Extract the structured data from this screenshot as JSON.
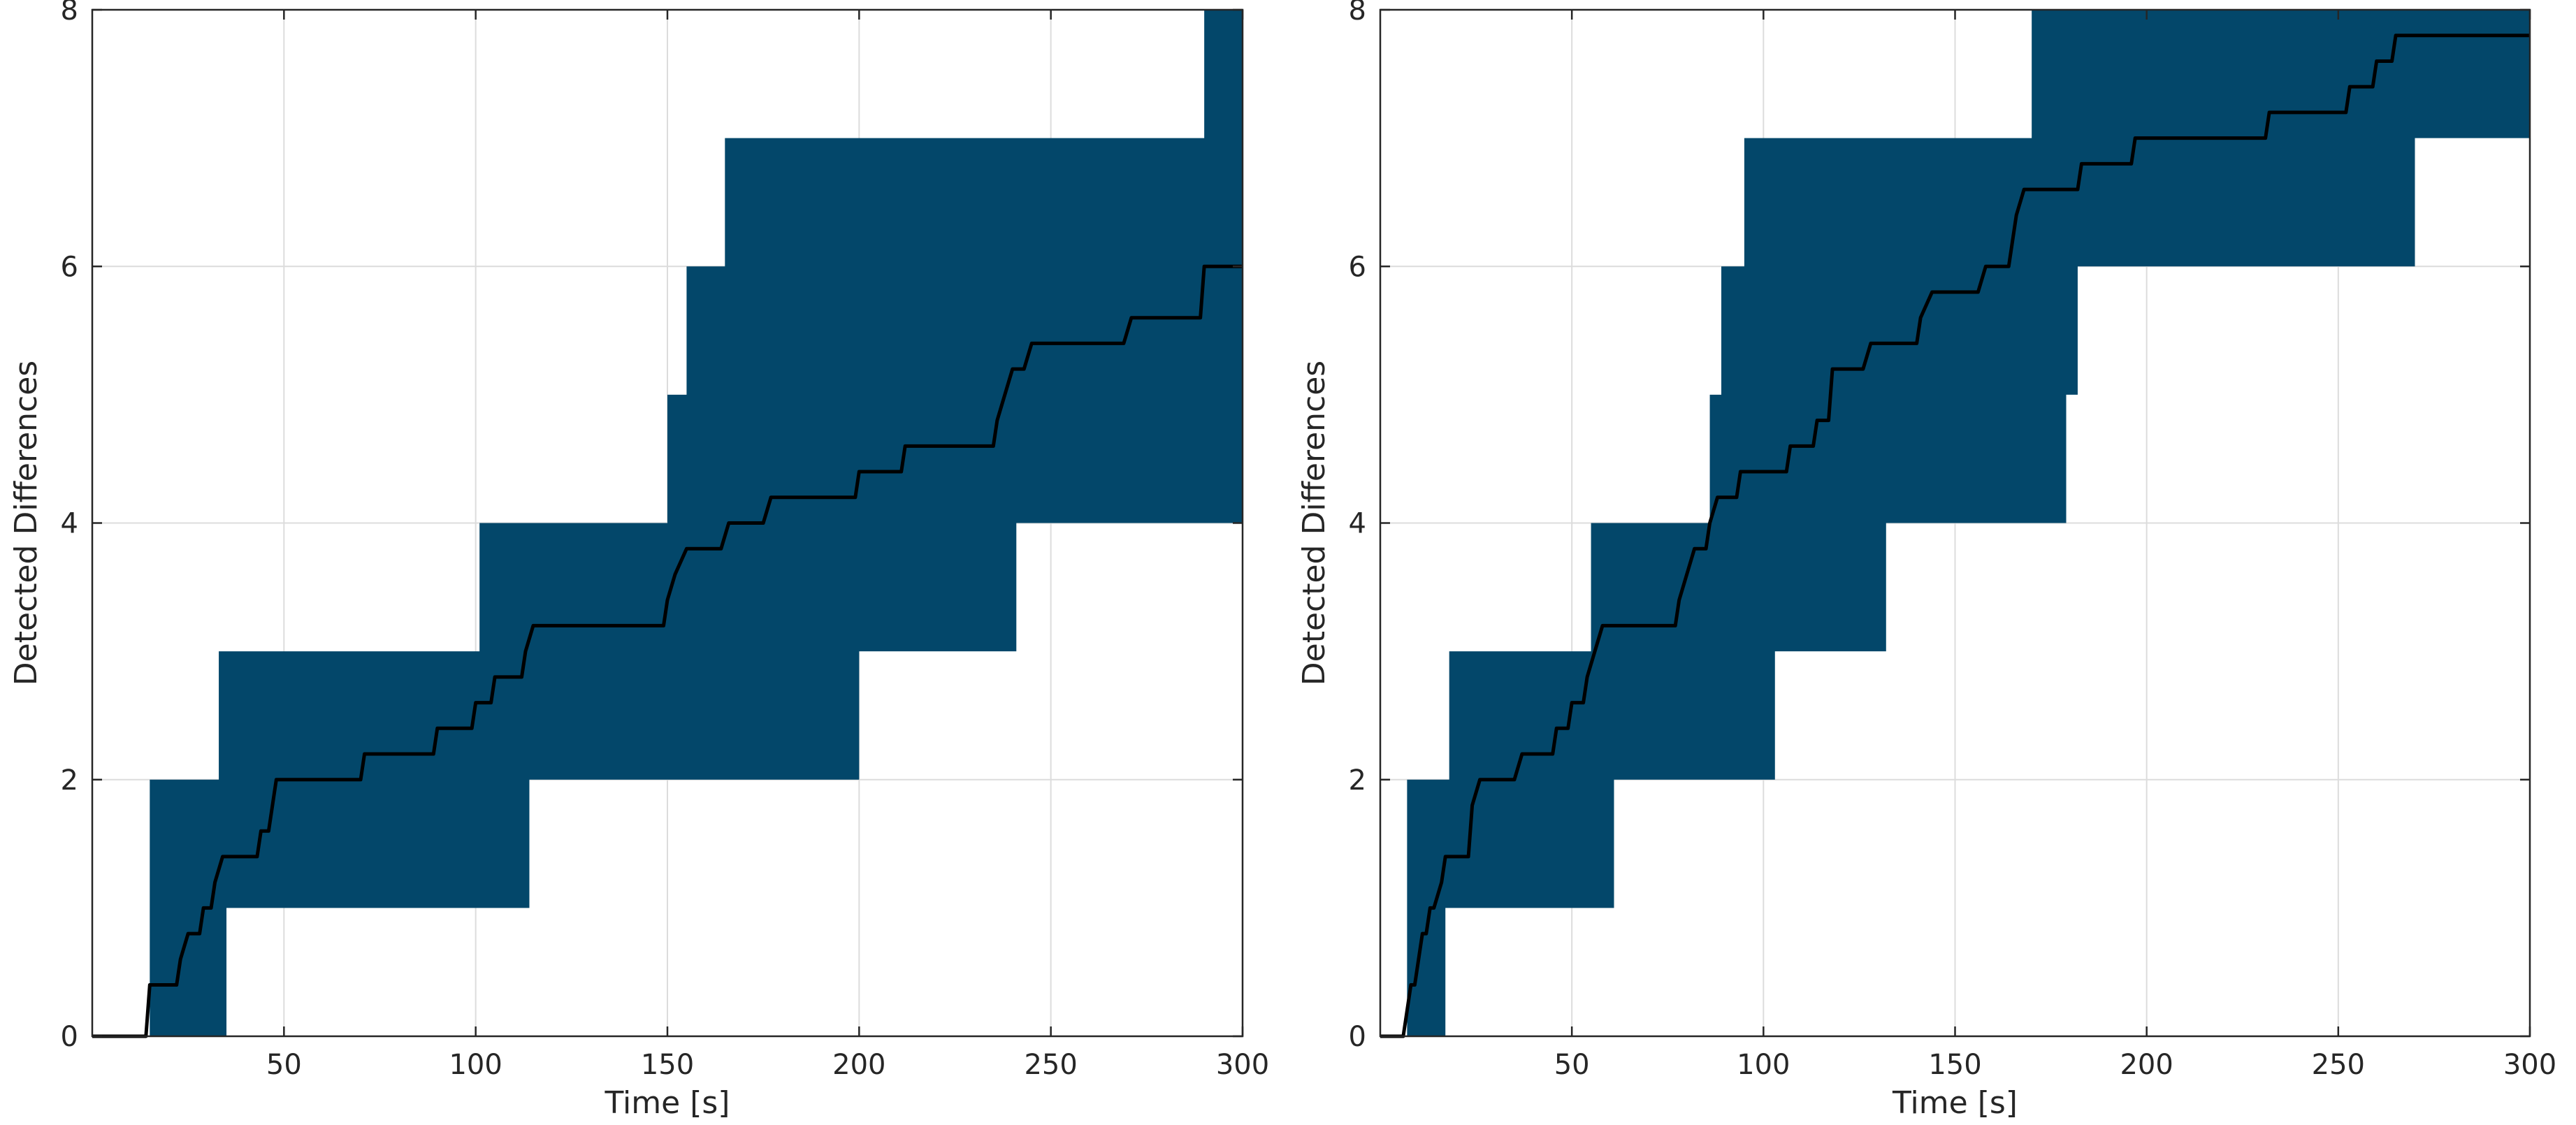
{
  "chart_data": [
    {
      "type": "area",
      "xlabel": "Time [s]",
      "ylabel": "Detected Differences",
      "xlim": [
        0,
        300
      ],
      "ylim": [
        0,
        8
      ],
      "xticks": [
        50,
        100,
        150,
        200,
        250,
        300
      ],
      "yticks": [
        0,
        2,
        4,
        6,
        8
      ],
      "grid": true,
      "band_color": "#03476a",
      "line_color": "#000000",
      "band": {
        "upper": [
          [
            0,
            0
          ],
          [
            15,
            0
          ],
          [
            15,
            2
          ],
          [
            33,
            2
          ],
          [
            33,
            3
          ],
          [
            101,
            3
          ],
          [
            101,
            4
          ],
          [
            150,
            4
          ],
          [
            150,
            5
          ],
          [
            155,
            5
          ],
          [
            155,
            6
          ],
          [
            165,
            6
          ],
          [
            165,
            7
          ],
          [
            290,
            7
          ],
          [
            290,
            8
          ],
          [
            300,
            8
          ]
        ],
        "lower": [
          [
            0,
            0
          ],
          [
            35,
            0
          ],
          [
            35,
            1
          ],
          [
            114,
            1
          ],
          [
            114,
            2
          ],
          [
            200,
            2
          ],
          [
            200,
            3
          ],
          [
            241,
            3
          ],
          [
            241,
            4
          ],
          [
            300,
            4
          ]
        ]
      },
      "mean": [
        [
          0,
          0
        ],
        [
          14,
          0
        ],
        [
          15,
          0.4
        ],
        [
          22,
          0.4
        ],
        [
          23,
          0.6
        ],
        [
          25,
          0.8
        ],
        [
          28,
          0.8
        ],
        [
          29,
          1
        ],
        [
          31,
          1
        ],
        [
          32,
          1.2
        ],
        [
          34,
          1.4
        ],
        [
          43,
          1.4
        ],
        [
          44,
          1.6
        ],
        [
          46,
          1.6
        ],
        [
          48,
          2
        ],
        [
          70,
          2
        ],
        [
          71,
          2.2
        ],
        [
          89,
          2.2
        ],
        [
          90,
          2.4
        ],
        [
          99,
          2.4
        ],
        [
          100,
          2.6
        ],
        [
          104,
          2.6
        ],
        [
          105,
          2.8
        ],
        [
          112,
          2.8
        ],
        [
          113,
          3
        ],
        [
          115,
          3.2
        ],
        [
          149,
          3.2
        ],
        [
          150,
          3.4
        ],
        [
          152,
          3.6
        ],
        [
          155,
          3.8
        ],
        [
          164,
          3.8
        ],
        [
          166,
          4
        ],
        [
          175,
          4
        ],
        [
          177,
          4.2
        ],
        [
          199,
          4.2
        ],
        [
          200,
          4.4
        ],
        [
          211,
          4.4
        ],
        [
          212,
          4.6
        ],
        [
          235,
          4.6
        ],
        [
          236,
          4.8
        ],
        [
          238,
          5
        ],
        [
          240,
          5.2
        ],
        [
          243,
          5.2
        ],
        [
          245,
          5.4
        ],
        [
          269,
          5.4
        ],
        [
          271,
          5.6
        ],
        [
          289,
          5.6
        ],
        [
          290,
          6
        ],
        [
          300,
          6
        ]
      ]
    },
    {
      "type": "area",
      "xlabel": "Time [s]",
      "ylabel": "Detected Differences",
      "xlim": [
        0,
        300
      ],
      "ylim": [
        0,
        8
      ],
      "xticks": [
        50,
        100,
        150,
        200,
        250,
        300
      ],
      "yticks": [
        0,
        2,
        4,
        6,
        8
      ],
      "grid": true,
      "band_color": "#03476a",
      "line_color": "#000000",
      "band": {
        "upper": [
          [
            0,
            0
          ],
          [
            7,
            0
          ],
          [
            7,
            2
          ],
          [
            18,
            2
          ],
          [
            18,
            3
          ],
          [
            55,
            3
          ],
          [
            55,
            4
          ],
          [
            86,
            4
          ],
          [
            86,
            5
          ],
          [
            89,
            5
          ],
          [
            89,
            6
          ],
          [
            95,
            6
          ],
          [
            95,
            7
          ],
          [
            170,
            7
          ],
          [
            170,
            8
          ],
          [
            300,
            8
          ]
        ],
        "lower": [
          [
            0,
            0
          ],
          [
            17,
            0
          ],
          [
            17,
            1
          ],
          [
            61,
            1
          ],
          [
            61,
            2
          ],
          [
            103,
            2
          ],
          [
            103,
            3
          ],
          [
            132,
            3
          ],
          [
            132,
            4
          ],
          [
            179,
            4
          ],
          [
            179,
            5
          ],
          [
            182,
            5
          ],
          [
            182,
            6
          ],
          [
            270,
            6
          ],
          [
            270,
            7
          ],
          [
            300,
            7
          ]
        ]
      },
      "mean": [
        [
          0,
          0
        ],
        [
          6,
          0
        ],
        [
          7,
          0.2
        ],
        [
          8,
          0.4
        ],
        [
          9,
          0.4
        ],
        [
          10,
          0.6
        ],
        [
          11,
          0.8
        ],
        [
          12,
          0.8
        ],
        [
          13,
          1
        ],
        [
          14,
          1
        ],
        [
          16,
          1.2
        ],
        [
          17,
          1.4
        ],
        [
          23,
          1.4
        ],
        [
          24,
          1.8
        ],
        [
          26,
          2
        ],
        [
          35,
          2
        ],
        [
          37,
          2.2
        ],
        [
          45,
          2.2
        ],
        [
          46,
          2.4
        ],
        [
          49,
          2.4
        ],
        [
          50,
          2.6
        ],
        [
          53,
          2.6
        ],
        [
          54,
          2.8
        ],
        [
          56,
          3
        ],
        [
          58,
          3.2
        ],
        [
          77,
          3.2
        ],
        [
          78,
          3.4
        ],
        [
          80,
          3.6
        ],
        [
          82,
          3.8
        ],
        [
          85,
          3.8
        ],
        [
          86,
          4
        ],
        [
          88,
          4.2
        ],
        [
          93,
          4.2
        ],
        [
          94,
          4.4
        ],
        [
          106,
          4.4
        ],
        [
          107,
          4.6
        ],
        [
          113,
          4.6
        ],
        [
          114,
          4.8
        ],
        [
          117,
          4.8
        ],
        [
          118,
          5.2
        ],
        [
          126,
          5.2
        ],
        [
          128,
          5.4
        ],
        [
          140,
          5.4
        ],
        [
          141,
          5.6
        ],
        [
          144,
          5.8
        ],
        [
          156,
          5.8
        ],
        [
          158,
          6
        ],
        [
          164,
          6
        ],
        [
          165,
          6.2
        ],
        [
          166,
          6.4
        ],
        [
          168,
          6.6
        ],
        [
          182,
          6.6
        ],
        [
          183,
          6.8
        ],
        [
          196,
          6.8
        ],
        [
          197,
          7
        ],
        [
          231,
          7
        ],
        [
          232,
          7.2
        ],
        [
          252,
          7.2
        ],
        [
          253,
          7.4
        ],
        [
          259,
          7.4
        ],
        [
          260,
          7.6
        ],
        [
          264,
          7.6
        ],
        [
          265,
          7.8
        ],
        [
          300,
          7.8
        ]
      ]
    }
  ]
}
